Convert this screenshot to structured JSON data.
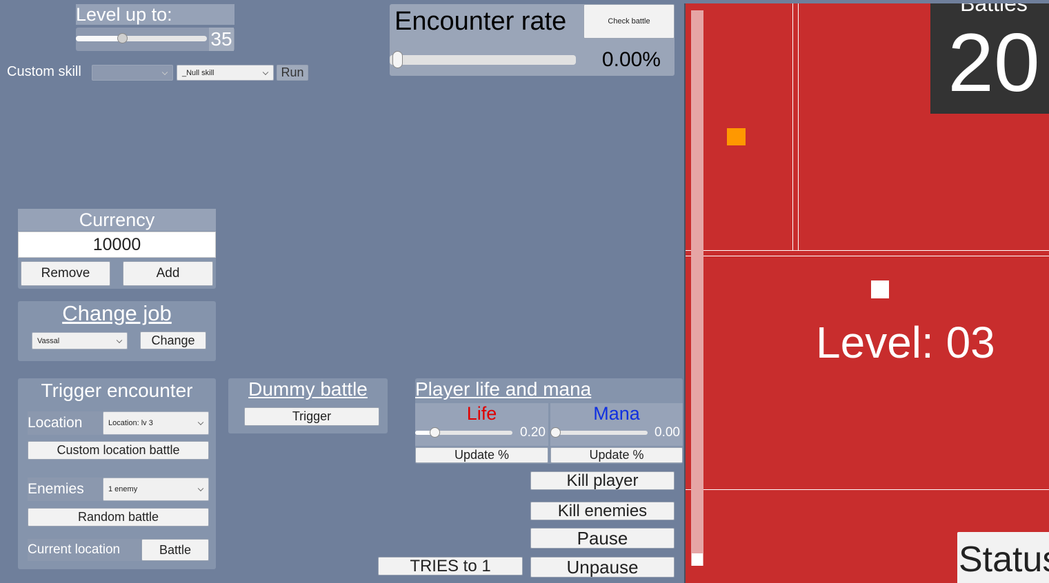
{
  "level_up": {
    "title": "Level up to:",
    "value": "35",
    "slider_fraction": 0.35
  },
  "custom_skill": {
    "label": "Custom skill",
    "select1": "",
    "select2": "_Null skill",
    "run": "Run"
  },
  "encounter": {
    "title": "Encounter rate",
    "check_battle": "Check battle",
    "rate": "0.00%",
    "slider_fraction": 0.0
  },
  "currency": {
    "title": "Currency",
    "value": "10000",
    "remove": "Remove",
    "add": "Add"
  },
  "change_job": {
    "title": "Change job",
    "job": "Vassal",
    "change": "Change"
  },
  "trigger_encounter": {
    "title": "Trigger encounter",
    "location_label": "Location",
    "location_value": "Location: lv 3",
    "custom_location_battle": "Custom location battle",
    "enemies_label": "Enemies",
    "enemies_value": "1 enemy",
    "random_battle": "Random battle",
    "current_location_label": "Current location",
    "battle": "Battle"
  },
  "dummy_battle": {
    "title": "Dummy battle",
    "trigger": "Trigger"
  },
  "life_mana": {
    "title": "Player life and mana",
    "life": {
      "label": "Life",
      "value": "0.20",
      "fraction": 0.2,
      "update": "Update %",
      "color": "#e00000"
    },
    "mana": {
      "label": "Mana",
      "value": "0.00",
      "fraction": 0.0,
      "update": "Update %",
      "color": "#1030e0"
    }
  },
  "actions": {
    "kill_player": "Kill player",
    "kill_enemies": "Kill enemies",
    "pause": "Pause",
    "unpause": "Unpause",
    "tries": "TRIES to 1"
  },
  "game": {
    "battles_label": "Battles",
    "battles_count": "20",
    "level": "Level: 03",
    "status": "Status",
    "bg_color": "#c82d2d"
  }
}
